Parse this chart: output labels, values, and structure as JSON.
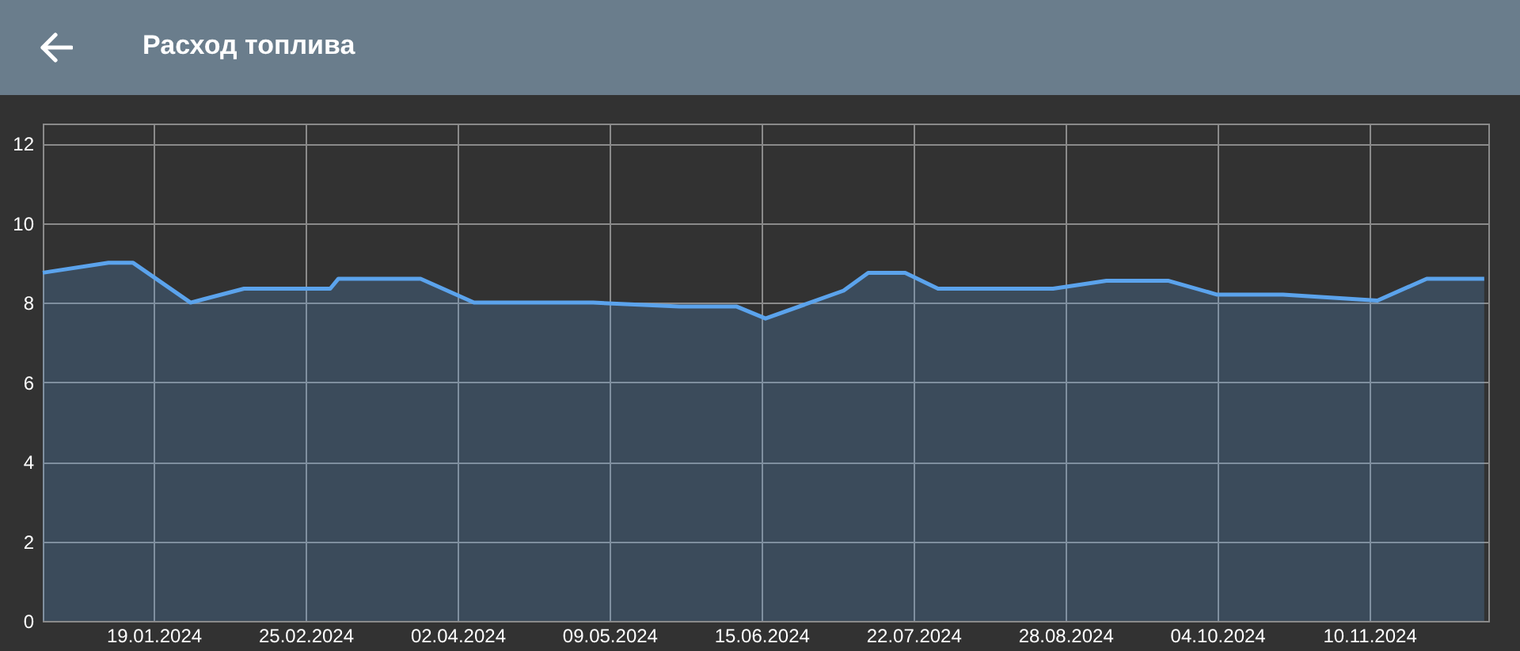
{
  "chart_data": {
    "type": "area",
    "title": "Расход топлива",
    "x": [
      "2023-12-23",
      "2024-01-08",
      "2024-01-14",
      "2024-01-28",
      "2024-02-10",
      "2024-03-02",
      "2024-03-04",
      "2024-03-24",
      "2024-04-06",
      "2024-05-05",
      "2024-05-26",
      "2024-06-09",
      "2024-06-16",
      "2024-07-05",
      "2024-07-11",
      "2024-07-20",
      "2024-07-28",
      "2024-08-25",
      "2024-09-07",
      "2024-09-22",
      "2024-10-04",
      "2024-10-20",
      "2024-11-12",
      "2024-11-24",
      "2024-12-08"
    ],
    "series": [
      {
        "color": "#5ba3ec",
        "values": [
          8.75,
          9.0,
          9.0,
          8.0,
          8.35,
          8.35,
          8.6,
          8.6,
          8.0,
          8.0,
          7.9,
          7.9,
          7.6,
          8.3,
          8.75,
          8.75,
          8.35,
          8.35,
          8.55,
          8.55,
          8.2,
          8.2,
          8.05,
          8.6,
          8.6
        ]
      }
    ],
    "xlim": [
      "2023-12-23",
      "2024-12-09"
    ],
    "xticks": [
      {
        "value": "2024-01-19",
        "label": "19.01.2024"
      },
      {
        "value": "2024-02-25",
        "label": "25.02.2024"
      },
      {
        "value": "2024-04-02",
        "label": "02.04.2024"
      },
      {
        "value": "2024-05-09",
        "label": "09.05.2024"
      },
      {
        "value": "2024-06-15",
        "label": "15.06.2024"
      },
      {
        "value": "2024-07-22",
        "label": "22.07.2024"
      },
      {
        "value": "2024-08-28",
        "label": "28.08.2024"
      },
      {
        "value": "2024-10-04",
        "label": "04.10.2024"
      },
      {
        "value": "2024-11-10",
        "label": "10.11.2024"
      }
    ],
    "ylim": [
      0,
      12.5
    ],
    "yticks": [
      0,
      2,
      4,
      6,
      8,
      10,
      12
    ],
    "grid": true
  }
}
